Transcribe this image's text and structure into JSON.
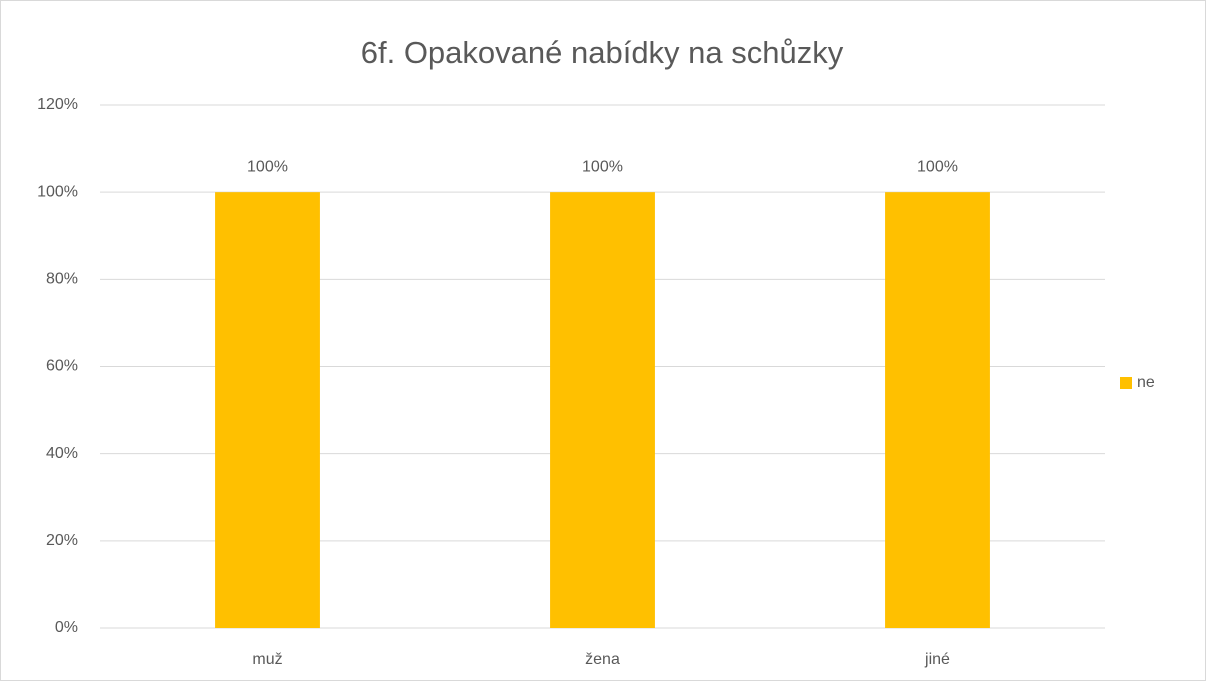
{
  "chart_data": {
    "type": "bar",
    "title": "6f. Opakované nabídky na schůzky",
    "categories": [
      "muž",
      "žena",
      "jiné"
    ],
    "series": [
      {
        "name": "ne",
        "color": "#FFC000",
        "values": [
          100,
          100,
          100
        ],
        "value_labels": [
          "100%",
          "100%",
          "100%"
        ]
      }
    ],
    "ylim": [
      0,
      120
    ],
    "yticks": [
      {
        "value": 0,
        "label": "0%"
      },
      {
        "value": 20,
        "label": "20%"
      },
      {
        "value": 40,
        "label": "40%"
      },
      {
        "value": 60,
        "label": "60%"
      },
      {
        "value": 80,
        "label": "80%"
      },
      {
        "value": 100,
        "label": "100%"
      },
      {
        "value": 120,
        "label": "120%"
      }
    ],
    "grid": true,
    "legend": "right"
  }
}
